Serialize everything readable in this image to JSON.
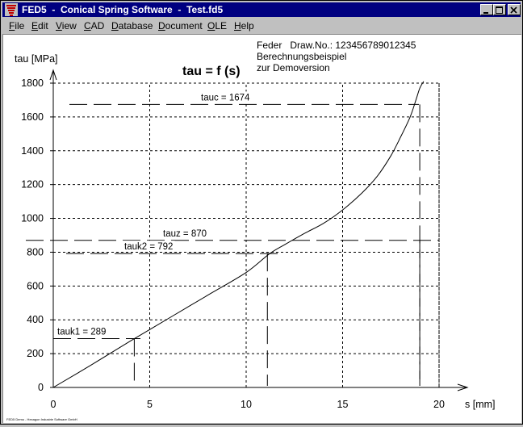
{
  "window": {
    "title": "FED5  -  Conical Spring Software  -  Test.fd5",
    "controls": [
      "minimize",
      "maximize",
      "close"
    ]
  },
  "menu": [
    {
      "label": "File",
      "mnemonic": "F",
      "rest": "ile"
    },
    {
      "label": "Edit",
      "mnemonic": "E",
      "rest": "dit"
    },
    {
      "label": "View",
      "mnemonic": "V",
      "rest": "iew"
    },
    {
      "label": "CAD",
      "mnemonic": "C",
      "rest": "AD"
    },
    {
      "label": "Database",
      "mnemonic": "D",
      "rest": "atabase"
    },
    {
      "label": "Document",
      "mnemonic": "D",
      "rest": "ocument"
    },
    {
      "label": "OLE",
      "mnemonic": "O",
      "rest": "LE"
    },
    {
      "label": "Help",
      "mnemonic": "H",
      "rest": "elp"
    }
  ],
  "info": {
    "line1": "Feder   Draw.No.: 123456789012345",
    "line2": "Berechnungsbeispiel",
    "line3": "zur Demoversion"
  },
  "footer_text": "FED5 Demo - Hexagon Industrie Software GmbH",
  "chart_data": {
    "type": "line",
    "title": "tau = f (s)",
    "xlabel": "s [mm]",
    "ylabel": "tau [MPa]",
    "xlim": [
      0,
      20
    ],
    "ylim": [
      0,
      1800
    ],
    "xticks": [
      0,
      5,
      10,
      15,
      20
    ],
    "yticks": [
      0,
      200,
      400,
      600,
      800,
      1000,
      1200,
      1400,
      1600,
      1800
    ],
    "grid": true,
    "series": [
      {
        "x": [
          0,
          2,
          4,
          6,
          8,
          10,
          11.2,
          12,
          13,
          14,
          15,
          16,
          16.8,
          17.5,
          18,
          18.5,
          18.8,
          19.0,
          19.2
        ],
        "y": [
          0,
          135,
          275,
          410,
          545,
          680,
          790,
          845,
          910,
          970,
          1050,
          1150,
          1250,
          1370,
          1480,
          1600,
          1700,
          1770,
          1810
        ]
      }
    ],
    "markers": [
      {
        "label": "tauc = 1674",
        "y": 1674,
        "x": 19.0
      },
      {
        "label": "tauz = 870",
        "y": 870,
        "x": 19.0
      },
      {
        "label": "tauk2 = 792",
        "y": 792,
        "x": 11.1
      },
      {
        "label": "tauk1 = 289",
        "y": 289,
        "x": 4.2
      }
    ]
  }
}
